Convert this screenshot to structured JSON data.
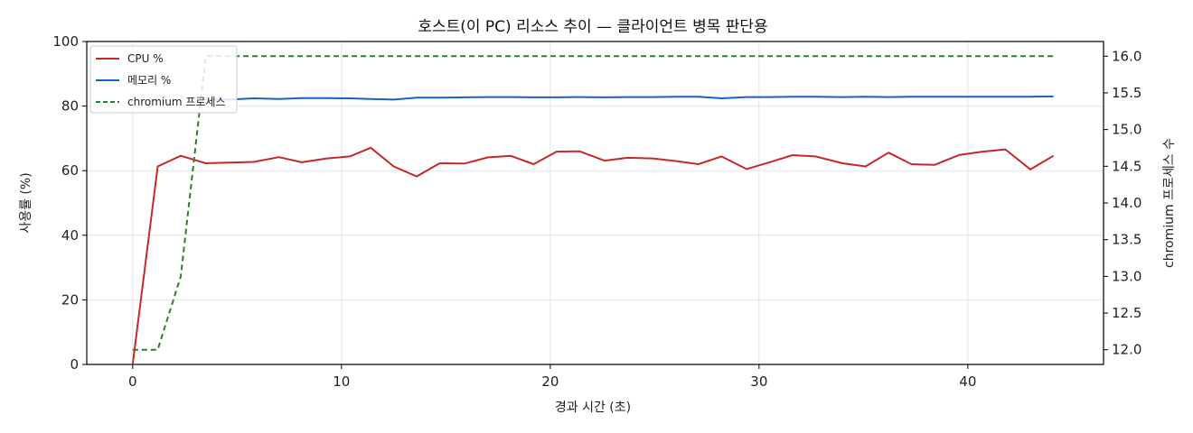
{
  "chart_data": {
    "type": "line",
    "title": "호스트(이 PC) 리소스 추이 — 클라이언트 병목 판단용",
    "xlabel": "경과 시간 (초)",
    "ylabel": "사용률 (%)",
    "y2label": "chromium 프로세스 수",
    "xlim": [
      -2.2,
      46.5
    ],
    "ylim": [
      0,
      100
    ],
    "y2lim": [
      11.8,
      16.2
    ],
    "xticks": [
      0,
      10,
      20,
      30,
      40
    ],
    "yticks": [
      0,
      20,
      40,
      60,
      80,
      100
    ],
    "y2ticks": [
      "12.0",
      "12.5",
      "13.0",
      "13.5",
      "14.0",
      "14.5",
      "15.0",
      "15.5",
      "16.0"
    ],
    "grid": true,
    "legend_position": "upper-left",
    "x": [
      0,
      1.2,
      2.3,
      3.5,
      4.6,
      5.8,
      7.0,
      8.1,
      9.3,
      10.4,
      11.4,
      12.5,
      13.6,
      14.7,
      15.9,
      17.0,
      18.1,
      19.2,
      20.3,
      21.4,
      22.6,
      23.7,
      24.9,
      26.0,
      27.1,
      28.2,
      29.4,
      30.5,
      31.6,
      32.7,
      34.0,
      35.1,
      36.2,
      37.3,
      38.4,
      39.6,
      40.7,
      41.8,
      43.0,
      44.1
    ],
    "series": [
      {
        "name": "CPU %",
        "axis": "left",
        "color": "#c62828",
        "style": "solid",
        "values": [
          0,
          61.3,
          64.6,
          62.3,
          62.5,
          62.7,
          64.2,
          62.6,
          63.8,
          64.4,
          67.1,
          61.3,
          58.2,
          62.3,
          62.2,
          64.1,
          64.6,
          62.0,
          65.9,
          66.0,
          63.1,
          64.0,
          63.8,
          63.0,
          62.0,
          64.4,
          60.5,
          62.6,
          64.8,
          64.4,
          62.3,
          61.3,
          65.6,
          62.0,
          61.8,
          64.9,
          65.9,
          66.6,
          60.4,
          64.6
        ]
      },
      {
        "name": "메모리 %",
        "axis": "left",
        "color": "#1565c0",
        "style": "solid",
        "values": [
          null,
          null,
          null,
          82.0,
          82.0,
          82.4,
          82.2,
          82.5,
          82.5,
          82.4,
          82.2,
          82.0,
          82.6,
          82.6,
          82.7,
          82.8,
          82.8,
          82.7,
          82.7,
          82.8,
          82.7,
          82.8,
          82.8,
          82.9,
          82.9,
          82.4,
          82.8,
          82.8,
          82.9,
          82.9,
          82.8,
          82.9,
          82.8,
          82.9,
          82.9,
          82.9,
          82.9,
          82.9,
          82.9,
          83.0
        ]
      },
      {
        "name": "chromium 프로세스",
        "axis": "right",
        "color": "#2e7d32",
        "style": "dashed",
        "values": [
          12,
          12,
          13,
          16,
          16,
          16,
          16,
          16,
          16,
          16,
          16,
          16,
          16,
          16,
          16,
          16,
          16,
          16,
          16,
          16,
          16,
          16,
          16,
          16,
          16,
          16,
          16,
          16,
          16,
          16,
          16,
          16,
          16,
          16,
          16,
          16,
          16,
          16,
          16,
          16
        ]
      }
    ]
  }
}
